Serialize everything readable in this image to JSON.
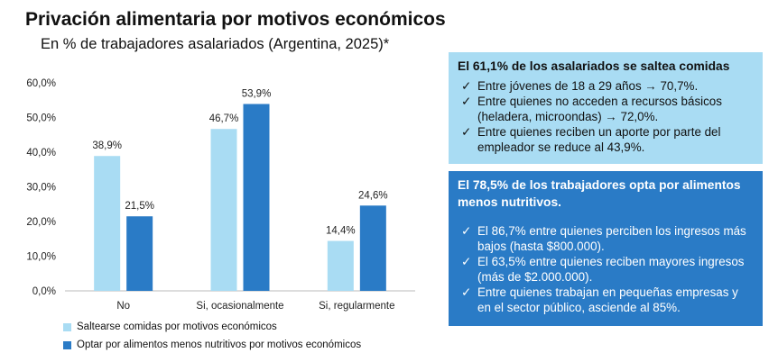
{
  "chart_data": {
    "type": "bar",
    "title": "Privación alimentaria por motivos económicos",
    "subtitle": "En % de trabajadores asalariados (Argentina, 2025)*",
    "categories": [
      "No",
      "Si, ocasionalmente",
      "Si, regularmente"
    ],
    "series": [
      {
        "name": "Saltearse comidas por motivos económicos",
        "values": [
          38.9,
          46.7,
          14.4
        ],
        "labels": [
          "38,9%",
          "46,7%",
          "14,4%"
        ],
        "color": "#a9dcf3"
      },
      {
        "name": "Optar por alimentos menos nutritivos por motivos económicos",
        "values": [
          21.5,
          53.9,
          24.6
        ],
        "labels": [
          "21,5%",
          "53,9%",
          "24,6%"
        ],
        "color": "#2a7bc6"
      }
    ],
    "yticks": [
      0,
      10,
      20,
      30,
      40,
      50,
      60
    ],
    "ytick_labels": [
      "0,0%",
      "10,0%",
      "20,0%",
      "30,0%",
      "40,0%",
      "50,0%",
      "60,0%"
    ],
    "ylim": [
      0,
      60
    ],
    "grid": false,
    "legend_position": "bottom-left"
  },
  "panels": [
    {
      "heading": "El 61,1% de los asalariados se saltea comidas",
      "items": [
        "Entre jóvenes de 18 a 29 años → 70,7%.",
        "Entre quienes no acceden a recursos básicos (heladera, microondas) → 72,0%.",
        "Entre quienes reciben un aporte por parte del empleador se reduce al 43,9%."
      ]
    },
    {
      "heading": "El 78,5% de los trabajadores opta por alimentos menos nutritivos.",
      "items": [
        "El 86,7% entre quienes perciben los ingresos más bajos (hasta $800.000).",
        "El 63,5% entre quienes reciben mayores ingresos (más de $2.000.000).",
        "Entre quienes trabajan en pequeñas empresas y en el sector público, asciende al 85%."
      ]
    }
  ],
  "check_icon": "✓"
}
